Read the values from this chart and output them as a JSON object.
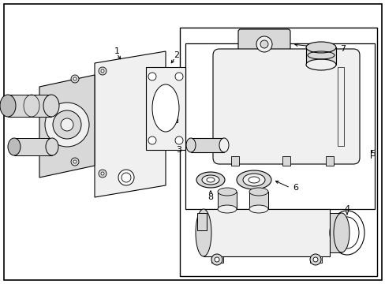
{
  "bg_color": "#ffffff",
  "line_color": "#000000",
  "fig_width": 4.89,
  "fig_height": 3.6,
  "dpi": 100,
  "lw_thin": 0.7,
  "lw_med": 1.0,
  "lw_thick": 1.5,
  "gray_light": "#f0f0f0",
  "gray_mid": "#d8d8d8",
  "gray_dark": "#bbbbbb"
}
